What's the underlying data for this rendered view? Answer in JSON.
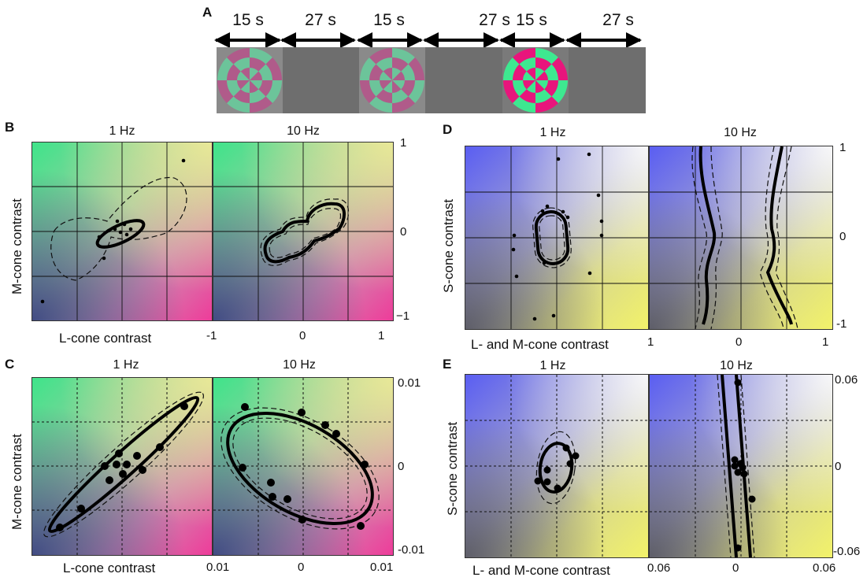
{
  "panel_A": {
    "letter": "A",
    "durations": [
      "15 s",
      "27 s",
      "15 s",
      "27 s",
      "15 s",
      "27 s"
    ],
    "colors": {
      "gray": "#6e6e6e",
      "green": "#3ee890",
      "magenta": "#e8157c"
    }
  },
  "panel_B": {
    "letter": "B",
    "left_title": "1 Hz",
    "right_title": "10 Hz",
    "ylabel": "M-cone contrast",
    "xlabel": "L-cone contrast",
    "x_ticks": [
      "-1",
      "0",
      "1"
    ],
    "y_ticks": [
      "1",
      "0",
      "−1"
    ]
  },
  "panel_C": {
    "letter": "C",
    "left_title": "1 Hz",
    "right_title": "10 Hz",
    "ylabel": "M-cone contrast",
    "xlabel": "L-cone contrast",
    "x_ticks": [
      "0.01",
      "0",
      "0.01"
    ],
    "y_ticks": [
      "0.01",
      "0",
      "-0.01"
    ]
  },
  "panel_D": {
    "letter": "D",
    "left_title": "1 Hz",
    "right_title": "10 Hz",
    "ylabel": "S-cone contrast",
    "xlabel": "L- and M-cone contrast",
    "x_ticks": [
      "1",
      "0",
      "1"
    ],
    "y_ticks": [
      "1",
      "0",
      "-1"
    ]
  },
  "panel_E": {
    "letter": "E",
    "left_title": "1 Hz",
    "right_title": "10 Hz",
    "ylabel": "S-cone contrast",
    "xlabel": "L- and M-cone contrast",
    "x_ticks": [
      "0.06",
      "0",
      "0.06"
    ],
    "y_ticks": [
      "0.06",
      "0",
      "-0.06"
    ]
  }
}
